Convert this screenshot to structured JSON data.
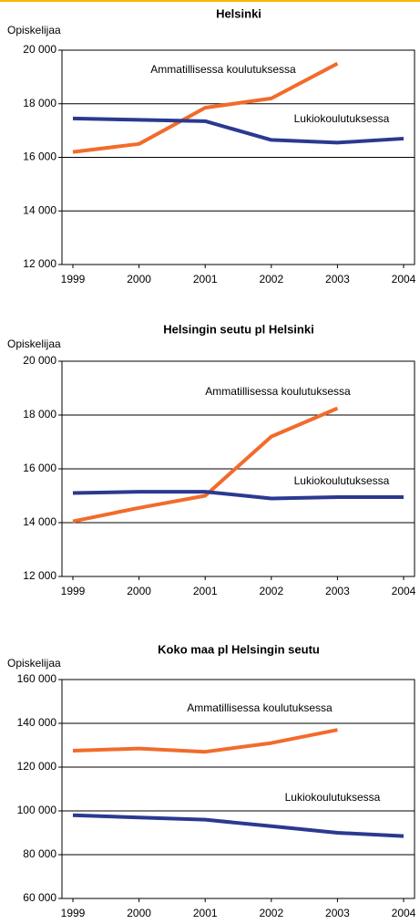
{
  "chart_data": [
    {
      "type": "line",
      "title": "Helsinki",
      "y_label": "Opiskelijaa",
      "categories": [
        "1999",
        "2000",
        "2001",
        "2002",
        "2003",
        "2004"
      ],
      "series": [
        {
          "name": "Ammatillisessa koulutuksessa",
          "color": "#f26b2b",
          "values": [
            16200,
            16500,
            17850,
            18200,
            19500,
            null
          ]
        },
        {
          "name": "Lukiokoulutuksessa",
          "color": "#2b3990",
          "values": [
            17450,
            17400,
            17350,
            16650,
            16550,
            16700
          ]
        }
      ],
      "ylim": [
        12000,
        20000
      ],
      "yticks": [
        {
          "value": 12000,
          "label": "12 000"
        },
        {
          "value": 14000,
          "label": "14 000"
        },
        {
          "value": 16000,
          "label": "16 000"
        },
        {
          "value": 18000,
          "label": "18 000"
        },
        {
          "value": 20000,
          "label": "20 000"
        }
      ],
      "grid": true
    },
    {
      "type": "line",
      "title": "Helsingin seutu pl Helsinki",
      "y_label": "Opiskelijaa",
      "categories": [
        "1999",
        "2000",
        "2001",
        "2002",
        "2003",
        "2004"
      ],
      "series": [
        {
          "name": "Ammatillisessa koulutuksessa",
          "color": "#f26b2b",
          "values": [
            14050,
            14550,
            15000,
            17200,
            18250,
            null
          ]
        },
        {
          "name": "Lukiokoulutuksessa",
          "color": "#2b3990",
          "values": [
            15100,
            15150,
            15150,
            14900,
            14950,
            14950
          ]
        }
      ],
      "ylim": [
        12000,
        20000
      ],
      "yticks": [
        {
          "value": 12000,
          "label": "12 000"
        },
        {
          "value": 14000,
          "label": "14 000"
        },
        {
          "value": 16000,
          "label": "16 000"
        },
        {
          "value": 18000,
          "label": "18 000"
        },
        {
          "value": 20000,
          "label": "20 000"
        }
      ],
      "grid": true
    },
    {
      "type": "line",
      "title": "Koko maa pl Helsingin seutu",
      "y_label": "Opiskelijaa",
      "categories": [
        "1999",
        "2000",
        "2001",
        "2002",
        "2003",
        "2004"
      ],
      "series": [
        {
          "name": "Ammatillisessa koulutuksessa",
          "color": "#f26b2b",
          "values": [
            127500,
            128500,
            127000,
            131000,
            137000,
            null
          ]
        },
        {
          "name": "Lukiokoulutuksessa",
          "color": "#2b3990",
          "values": [
            98000,
            97000,
            96000,
            93000,
            90000,
            88500
          ]
        }
      ],
      "ylim": [
        60000,
        160000
      ],
      "yticks": [
        {
          "value": 60000,
          "label": "60 000"
        },
        {
          "value": 80000,
          "label": "80 000"
        },
        {
          "value": 100000,
          "label": "100 000"
        },
        {
          "value": 120000,
          "label": "120 000"
        },
        {
          "value": 140000,
          "label": "140 000"
        },
        {
          "value": 160000,
          "label": "160 000"
        }
      ],
      "grid": true
    }
  ]
}
